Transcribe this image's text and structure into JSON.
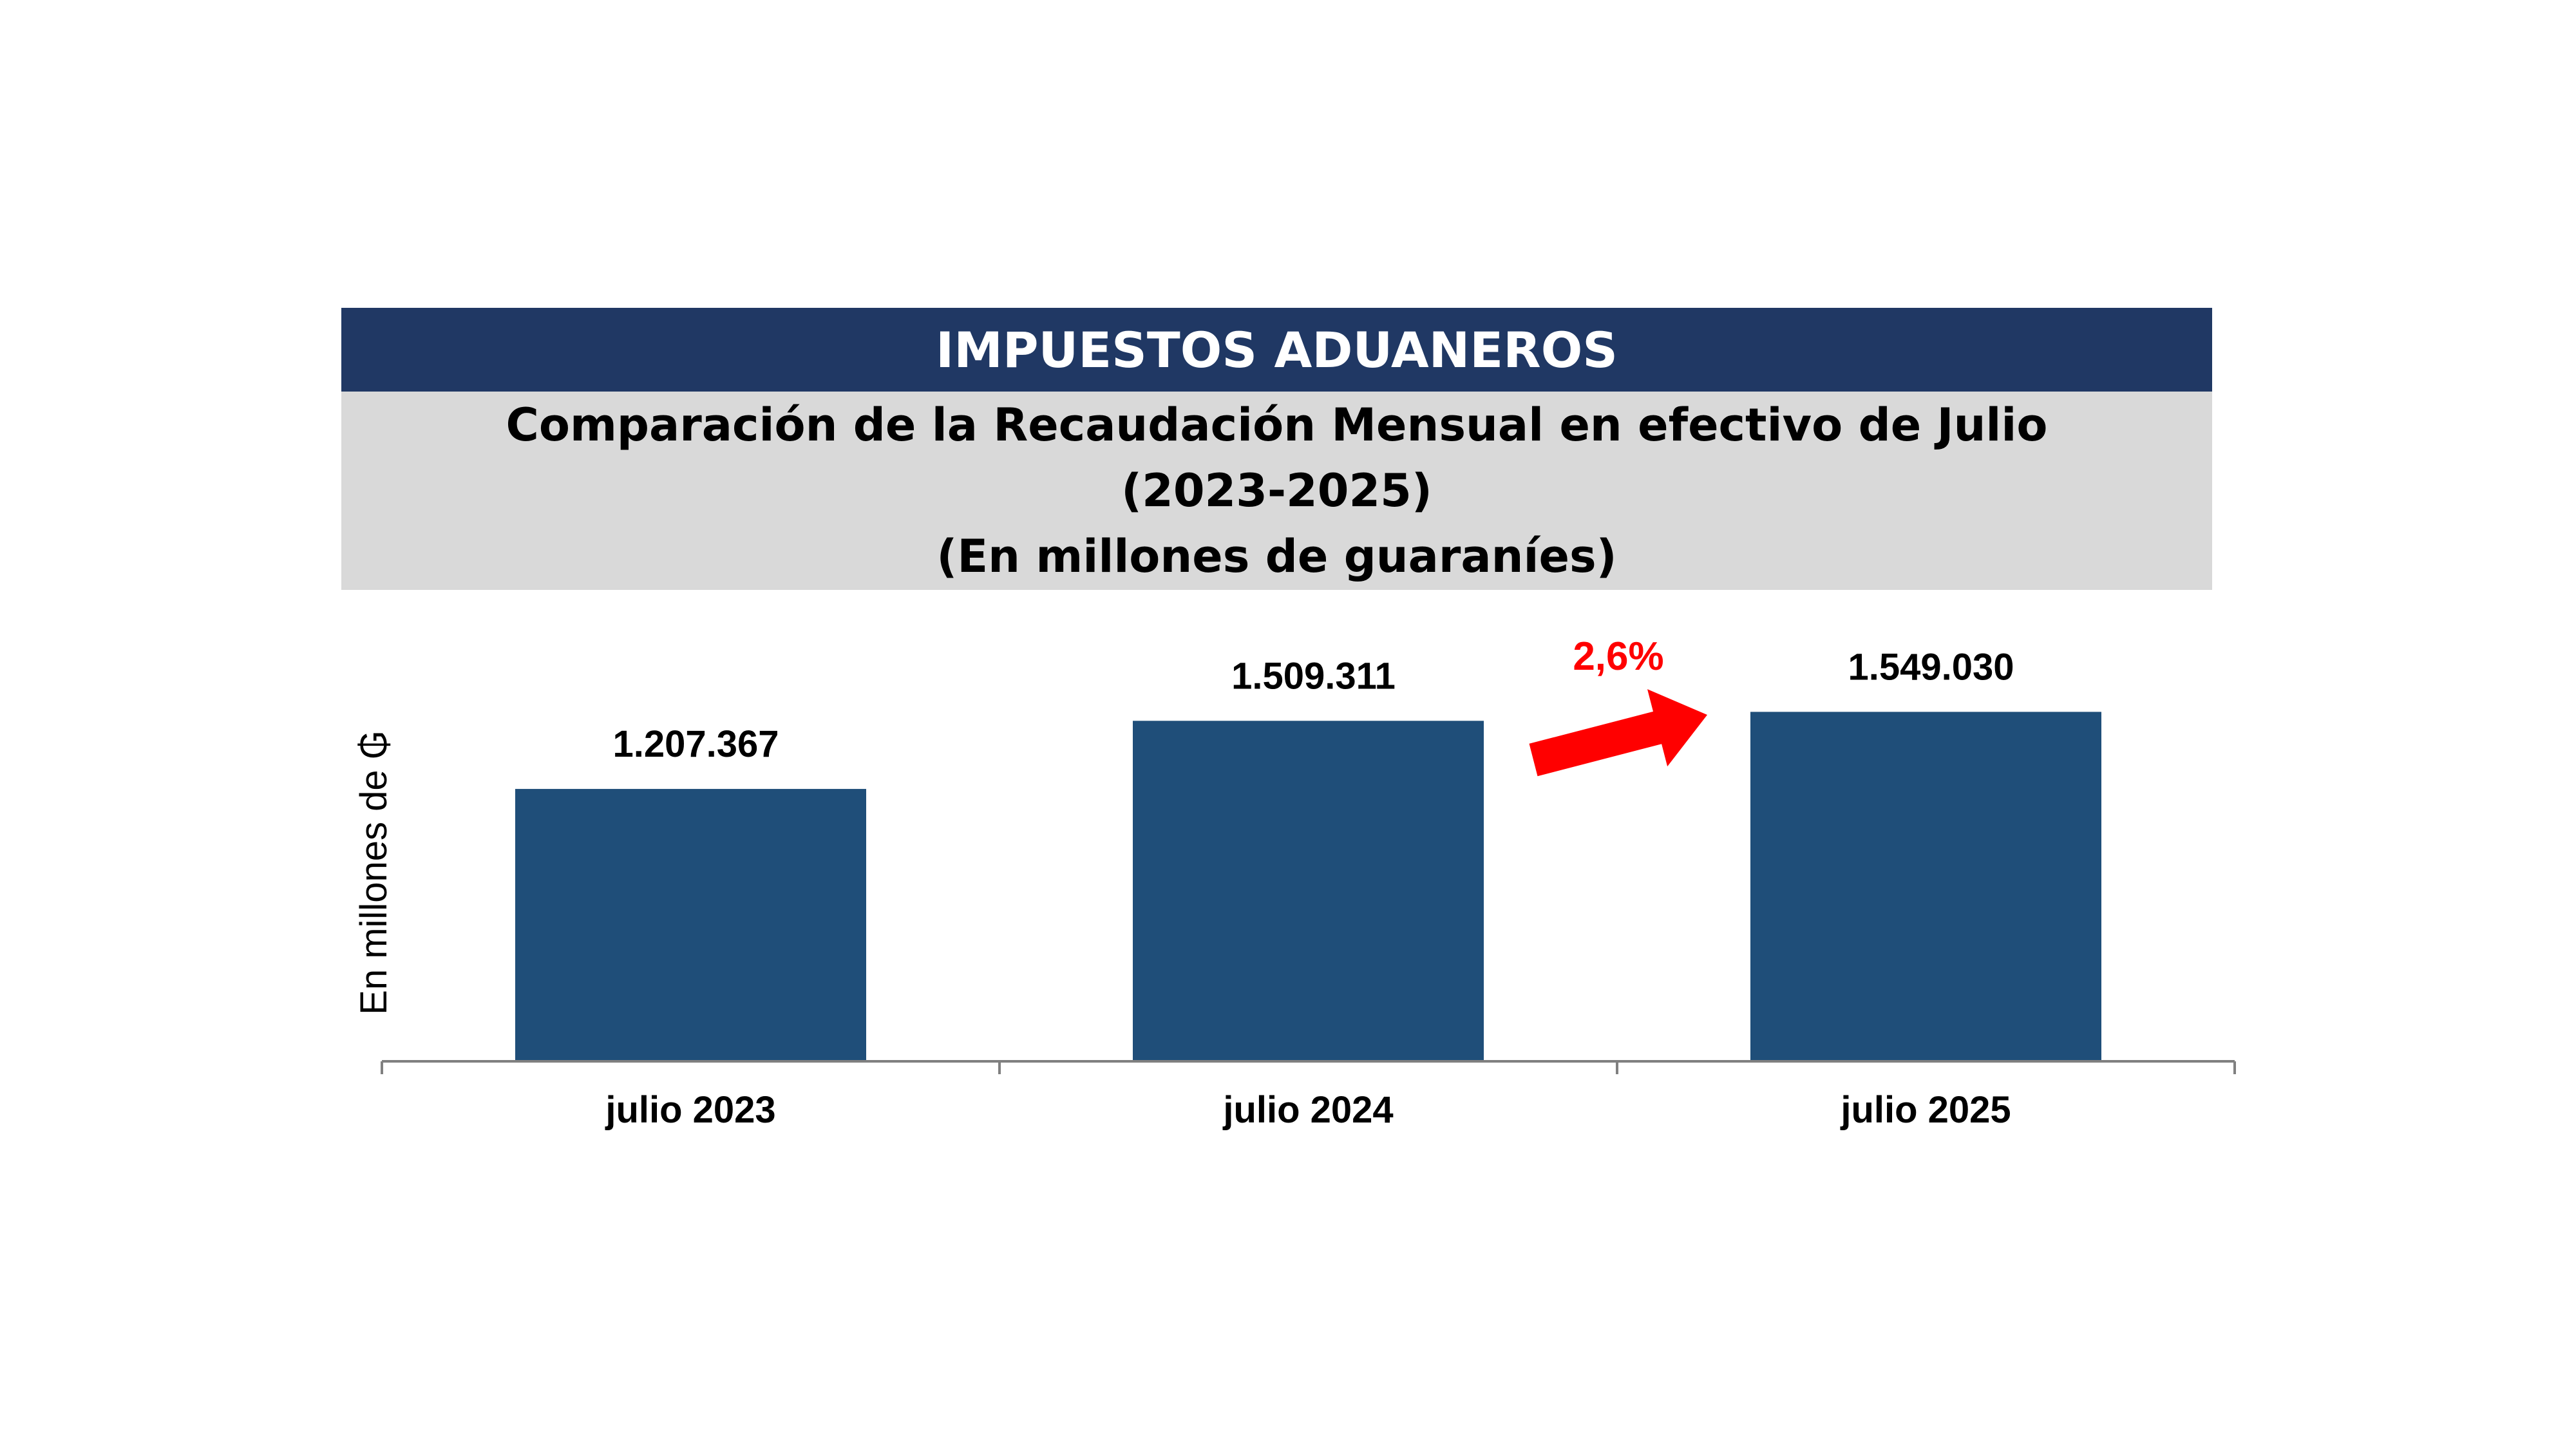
{
  "header": {
    "title": "IMPUESTOS ADUANEROS",
    "subtitle_line1": "Comparación de la Recaudación Mensual en efectivo de Julio",
    "subtitle_line2": "(2023-2025)",
    "subtitle_line3": "(En millones de guaraníes)"
  },
  "colors": {
    "header_bg": "#203864",
    "subtitle_bg": "#d9d9d9",
    "bar": "#1f4e79",
    "growth": "#ff0000",
    "axis": "#808080"
  },
  "chart_data": {
    "type": "bar",
    "categories": [
      "julio 2023",
      "julio 2024",
      "julio 2025"
    ],
    "values": [
      1207367,
      1509311,
      1549030
    ],
    "value_labels": [
      "1.207.367",
      "1.509.311",
      "1.549.030"
    ],
    "ylabel": "En millones de ₲",
    "ylim": [
      0,
      1650000
    ],
    "grid": false,
    "annotations": [
      {
        "text": "2,6%",
        "from_category": "julio 2024",
        "to_category": "julio 2025",
        "icon": "arrow-up-right-icon"
      }
    ]
  }
}
